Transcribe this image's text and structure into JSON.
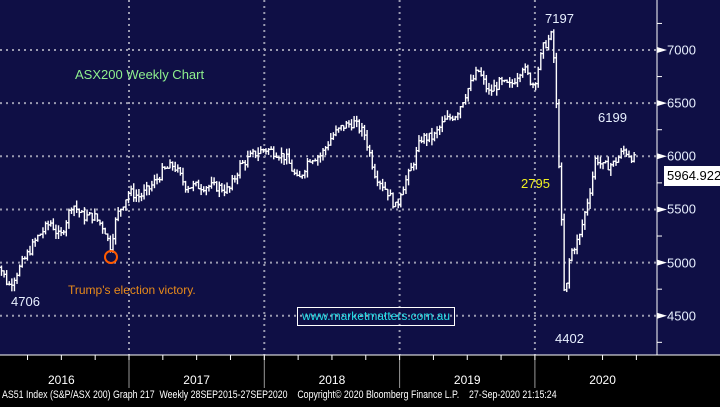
{
  "chart_data": {
    "type": "line",
    "subtype": "ohlc-weekly",
    "title": "ASX200 Weekly Chart",
    "ylim": [
      4150,
      7350
    ],
    "yticks": [
      4500,
      5000,
      5500,
      6000,
      6500,
      7000
    ],
    "xticks": [
      "2016",
      "2017",
      "2018",
      "2019",
      "2020"
    ],
    "grid": true,
    "last_value": "5964.922",
    "series": [
      {
        "name": "AS51 Index",
        "points": [
          [
            2016.0,
            5300
          ],
          [
            2016.04,
            4980
          ],
          [
            2016.11,
            4780
          ],
          [
            2016.16,
            4880
          ],
          [
            2016.25,
            5080
          ],
          [
            2016.33,
            5250
          ],
          [
            2016.42,
            5380
          ],
          [
            2016.49,
            5230
          ],
          [
            2016.58,
            5560
          ],
          [
            2016.66,
            5430
          ],
          [
            2016.74,
            5440
          ],
          [
            2016.82,
            5320
          ],
          [
            2016.86,
            5140
          ],
          [
            2016.91,
            5440
          ],
          [
            2017.0,
            5665
          ],
          [
            2017.08,
            5620
          ],
          [
            2017.16,
            5710
          ],
          [
            2017.25,
            5860
          ],
          [
            2017.33,
            5920
          ],
          [
            2017.42,
            5720
          ],
          [
            2017.5,
            5720
          ],
          [
            2017.58,
            5720
          ],
          [
            2017.66,
            5710
          ],
          [
            2017.74,
            5680
          ],
          [
            2017.82,
            5910
          ],
          [
            2017.91,
            6010
          ],
          [
            2018.0,
            6070
          ],
          [
            2018.08,
            6040
          ],
          [
            2018.16,
            5990
          ],
          [
            2018.25,
            5760
          ],
          [
            2018.33,
            5980
          ],
          [
            2018.42,
            6010
          ],
          [
            2018.5,
            6190
          ],
          [
            2018.58,
            6280
          ],
          [
            2018.66,
            6320
          ],
          [
            2018.74,
            6210
          ],
          [
            2018.82,
            5830
          ],
          [
            2018.91,
            5670
          ],
          [
            2018.98,
            5500
          ],
          [
            2019.0,
            5650
          ],
          [
            2019.08,
            5860
          ],
          [
            2019.16,
            6170
          ],
          [
            2019.25,
            6180
          ],
          [
            2019.33,
            6330
          ],
          [
            2019.42,
            6400
          ],
          [
            2019.5,
            6620
          ],
          [
            2019.58,
            6810
          ],
          [
            2019.66,
            6600
          ],
          [
            2019.74,
            6690
          ],
          [
            2019.82,
            6660
          ],
          [
            2019.91,
            6850
          ],
          [
            2019.98,
            6680
          ],
          [
            2020.0,
            6700
          ],
          [
            2020.06,
            7020
          ],
          [
            2020.13,
            7150
          ],
          [
            2020.16,
            6440
          ],
          [
            2020.19,
            5600
          ],
          [
            2020.22,
            4600
          ],
          [
            2020.26,
            5080
          ],
          [
            2020.33,
            5240
          ],
          [
            2020.42,
            5760
          ],
          [
            2020.45,
            6000
          ],
          [
            2020.5,
            5900
          ],
          [
            2020.58,
            5930
          ],
          [
            2020.66,
            6060
          ],
          [
            2020.74,
            5965
          ]
        ]
      }
    ],
    "annotations": {
      "high": "7197",
      "post_high": "6199",
      "mid": "2795",
      "crash_low": "4402",
      "start_low": "4706",
      "event": "Trump's election victory.",
      "event_color": "#ff5a00",
      "website": "www.marketmatters.com.au"
    }
  },
  "footer": {
    "security": "AS51 Index (S&P/ASX 200) Graph 217  Weekly 28SEP2015-27SEP2020",
    "copyright": "Copyright© 2020 Bloomberg Finance L.P.",
    "timestamp": "27-Sep-2020 21:15:24"
  },
  "colors": {
    "background": "#0f0f45",
    "bar": "#ffffff",
    "title": "#8ef08e",
    "event_text": "#e88a1a",
    "website": "#22e0e8",
    "mid_label": "#f0f020"
  }
}
